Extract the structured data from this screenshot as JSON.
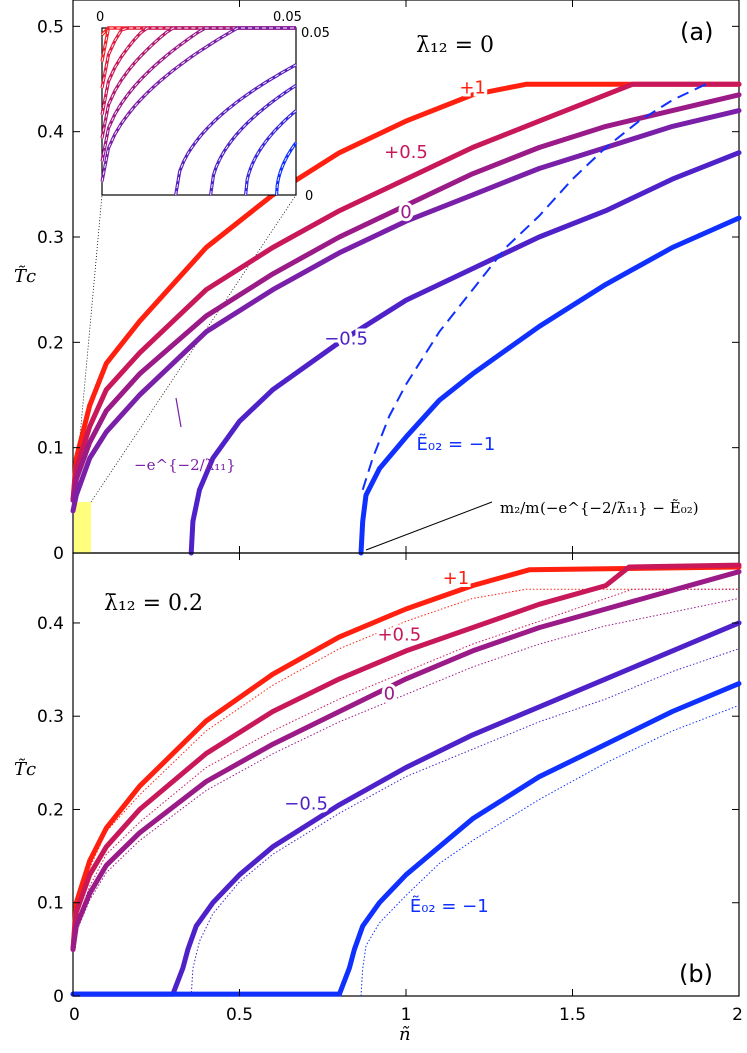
{
  "chart_data": [
    {
      "type": "line",
      "panel_label": "(a)",
      "lambda_label": "λ̄₁₂ = 0",
      "xlabel": "ñ",
      "ylabel": "T̃c",
      "xlim": [
        0,
        2
      ],
      "ylim": [
        0,
        0.525
      ],
      "x_ticks": [
        "0",
        "0.5",
        "1",
        "1.5",
        "2"
      ],
      "y_ticks": [
        "0",
        "0.1",
        "0.2",
        "0.3",
        "0.4",
        "0.5"
      ],
      "colors": [
        "#ff2010",
        "#c8185a",
        "#9a1a88",
        "#7a1fa8",
        "#4e22c8",
        "#1030ff"
      ],
      "series": [
        {
          "label": "+1",
          "E02": 1,
          "color": "#ff2010",
          "points": [
            [
              0,
              0.05
            ],
            [
              0.01,
              0.09
            ],
            [
              0.05,
              0.14
            ],
            [
              0.1,
              0.18
            ],
            [
              0.2,
              0.22
            ],
            [
              0.4,
              0.29
            ],
            [
              0.6,
              0.34
            ],
            [
              0.8,
              0.38
            ],
            [
              1.0,
              0.41
            ],
            [
              1.2,
              0.435
            ],
            [
              1.36,
              0.445
            ],
            [
              2.0,
              0.445
            ]
          ]
        },
        {
          "label": "+0.5",
          "E02": 0.5,
          "color": "#c8185a",
          "points": [
            [
              0,
              0.05
            ],
            [
              0.01,
              0.08
            ],
            [
              0.05,
              0.12
            ],
            [
              0.1,
              0.155
            ],
            [
              0.2,
              0.19
            ],
            [
              0.4,
              0.25
            ],
            [
              0.6,
              0.29
            ],
            [
              0.8,
              0.325
            ],
            [
              1.0,
              0.355
            ],
            [
              1.2,
              0.385
            ],
            [
              1.4,
              0.41
            ],
            [
              1.68,
              0.445
            ],
            [
              2.0,
              0.445
            ]
          ]
        },
        {
          "label": "0",
          "E02": 0,
          "color": "#9a1a88",
          "points": [
            [
              0,
              0.05
            ],
            [
              0.01,
              0.07
            ],
            [
              0.05,
              0.105
            ],
            [
              0.1,
              0.135
            ],
            [
              0.2,
              0.17
            ],
            [
              0.4,
              0.225
            ],
            [
              0.6,
              0.265
            ],
            [
              0.8,
              0.3
            ],
            [
              1.0,
              0.33
            ],
            [
              1.2,
              0.36
            ],
            [
              1.4,
              0.385
            ],
            [
              1.6,
              0.405
            ],
            [
              1.8,
              0.42
            ],
            [
              2.0,
              0.435
            ]
          ]
        },
        {
          "label": "",
          "E02": -0.1353,
          "color": "#7a1fa8",
          "points": [
            [
              0,
              0.04
            ],
            [
              0.01,
              0.055
            ],
            [
              0.05,
              0.09
            ],
            [
              0.1,
              0.115
            ],
            [
              0.2,
              0.15
            ],
            [
              0.4,
              0.21
            ],
            [
              0.6,
              0.25
            ],
            [
              0.8,
              0.285
            ],
            [
              1.0,
              0.315
            ],
            [
              1.2,
              0.34
            ],
            [
              1.4,
              0.365
            ],
            [
              1.6,
              0.385
            ],
            [
              1.8,
              0.405
            ],
            [
              2.0,
              0.42
            ]
          ]
        },
        {
          "label": "−0.5",
          "E02": -0.5,
          "color": "#4e22c8",
          "points": [
            [
              0.355,
              0.0
            ],
            [
              0.36,
              0.03
            ],
            [
              0.38,
              0.06
            ],
            [
              0.42,
              0.09
            ],
            [
              0.5,
              0.125
            ],
            [
              0.6,
              0.155
            ],
            [
              0.8,
              0.2
            ],
            [
              1.0,
              0.24
            ],
            [
              1.2,
              0.27
            ],
            [
              1.4,
              0.3
            ],
            [
              1.6,
              0.325
            ],
            [
              1.8,
              0.355
            ],
            [
              2.0,
              0.38
            ]
          ]
        },
        {
          "label": "Ẽ₀₂ = −1",
          "E02": -1,
          "color": "#1030ff",
          "points": [
            [
              0.865,
              0.0
            ],
            [
              0.87,
              0.03
            ],
            [
              0.88,
              0.055
            ],
            [
              0.92,
              0.08
            ],
            [
              1.0,
              0.11
            ],
            [
              1.1,
              0.145
            ],
            [
              1.2,
              0.17
            ],
            [
              1.4,
              0.215
            ],
            [
              1.6,
              0.255
            ],
            [
              1.8,
              0.29
            ],
            [
              2.0,
              0.318
            ]
          ]
        }
      ],
      "dashed_curve": {
        "color": "#1030ff",
        "points": [
          [
            0.87,
            0.06
          ],
          [
            0.9,
            0.09
          ],
          [
            0.95,
            0.13
          ],
          [
            1.0,
            0.16
          ],
          [
            1.1,
            0.21
          ],
          [
            1.2,
            0.25
          ],
          [
            1.3,
            0.29
          ],
          [
            1.4,
            0.32
          ],
          [
            1.5,
            0.355
          ],
          [
            1.6,
            0.385
          ],
          [
            1.7,
            0.41
          ],
          [
            1.8,
            0.43
          ],
          [
            1.9,
            0.445
          ]
        ]
      },
      "annotation_vertex_label": "−e^{−2/λ̄₁₁}",
      "annotation_formula_prefix": "m₂/m",
      "annotation_formula_body": "(−e^{−2/λ̄₁₁} − Ẽ₀₂)",
      "inset": {
        "xlim": [
          0,
          0.05
        ],
        "ylim": [
          0,
          0.05
        ],
        "x_tick_left": "0",
        "x_tick_right": "0.05",
        "y_tick_top": "0.05",
        "y_tick_bottom": "0"
      }
    },
    {
      "type": "line",
      "panel_label": "(b)",
      "lambda_label": "λ̄₁₂ = 0.2",
      "xlabel": "ñ",
      "ylabel": "T̃c",
      "xlim": [
        0,
        2
      ],
      "ylim": [
        0,
        0.475
      ],
      "x_ticks": [
        "0",
        "0.5",
        "1",
        "1.5",
        "2"
      ],
      "y_ticks": [
        "0",
        "0.1",
        "0.2",
        "0.3",
        "0.4"
      ],
      "series": [
        {
          "label": "+1",
          "E02": 1,
          "color": "#ff2010",
          "points": [
            [
              0,
              0.05
            ],
            [
              0.01,
              0.1
            ],
            [
              0.05,
              0.145
            ],
            [
              0.1,
              0.18
            ],
            [
              0.2,
              0.225
            ],
            [
              0.4,
              0.295
            ],
            [
              0.6,
              0.345
            ],
            [
              0.8,
              0.385
            ],
            [
              1.0,
              0.415
            ],
            [
              1.2,
              0.44
            ],
            [
              1.37,
              0.457
            ],
            [
              2.0,
              0.46
            ]
          ]
        },
        {
          "label": "+0.5",
          "E02": 0.5,
          "color": "#c8185a",
          "points": [
            [
              0,
              0.05
            ],
            [
              0.01,
              0.09
            ],
            [
              0.05,
              0.13
            ],
            [
              0.1,
              0.16
            ],
            [
              0.2,
              0.2
            ],
            [
              0.4,
              0.26
            ],
            [
              0.6,
              0.305
            ],
            [
              0.8,
              0.34
            ],
            [
              1.0,
              0.37
            ],
            [
              1.2,
              0.395
            ],
            [
              1.4,
              0.42
            ],
            [
              1.6,
              0.44
            ],
            [
              1.67,
              0.46
            ],
            [
              2.0,
              0.462
            ]
          ]
        },
        {
          "label": "0",
          "E02": 0,
          "color": "#9a1a88",
          "points": [
            [
              0,
              0.05
            ],
            [
              0.01,
              0.075
            ],
            [
              0.05,
              0.11
            ],
            [
              0.1,
              0.14
            ],
            [
              0.2,
              0.175
            ],
            [
              0.4,
              0.23
            ],
            [
              0.6,
              0.27
            ],
            [
              0.8,
              0.305
            ],
            [
              1.0,
              0.34
            ],
            [
              1.2,
              0.37
            ],
            [
              1.4,
              0.395
            ],
            [
              1.6,
              0.415
            ],
            [
              1.8,
              0.435
            ],
            [
              2.0,
              0.455
            ]
          ]
        },
        {
          "label": "−0.5",
          "E02": -0.5,
          "color": "#4e22c8",
          "points": [
            [
              0,
              0.002
            ],
            [
              0.3,
              0.002
            ],
            [
              0.33,
              0.03
            ],
            [
              0.345,
              0.05
            ],
            [
              0.37,
              0.075
            ],
            [
              0.42,
              0.1
            ],
            [
              0.5,
              0.13
            ],
            [
              0.6,
              0.16
            ],
            [
              0.8,
              0.205
            ],
            [
              1.0,
              0.245
            ],
            [
              1.2,
              0.28
            ],
            [
              1.4,
              0.31
            ],
            [
              1.6,
              0.34
            ],
            [
              1.8,
              0.37
            ],
            [
              2.0,
              0.4
            ]
          ]
        },
        {
          "label": "Ẽ₀₂ = −1",
          "E02": -1,
          "color": "#1030ff",
          "points": [
            [
              0,
              0.002
            ],
            [
              0.8,
              0.002
            ],
            [
              0.83,
              0.03
            ],
            [
              0.845,
              0.05
            ],
            [
              0.87,
              0.075
            ],
            [
              0.92,
              0.1
            ],
            [
              1.0,
              0.13
            ],
            [
              1.1,
              0.16
            ],
            [
              1.2,
              0.19
            ],
            [
              1.4,
              0.235
            ],
            [
              1.6,
              0.27
            ],
            [
              1.8,
              0.305
            ],
            [
              2.0,
              0.335
            ]
          ]
        }
      ]
    }
  ]
}
